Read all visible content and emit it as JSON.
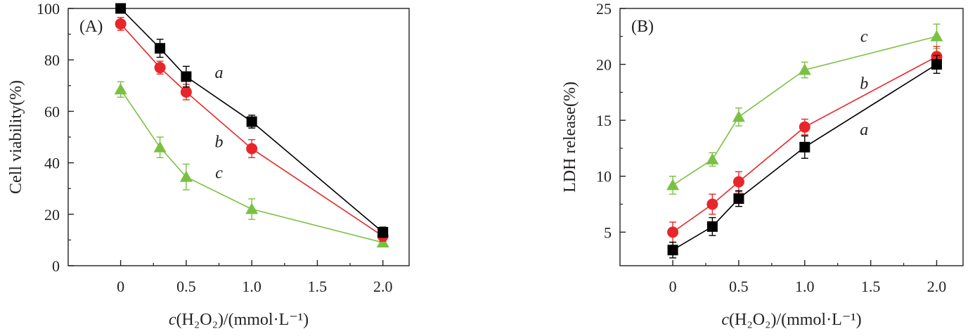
{
  "chart_data": [
    {
      "type": "line",
      "panel_label": "(A)",
      "xlabel": "c(H2O2)/(mmol·L⁻¹)",
      "ylabel": "Cell viability(%)",
      "x": [
        0,
        0.3,
        0.5,
        1.0,
        2.0
      ],
      "x_ticks": [
        "0",
        "0.5",
        "1.0",
        "1.5",
        "2.0"
      ],
      "y_ticks": [
        "0",
        "20",
        "40",
        "60",
        "80",
        "100"
      ],
      "xlim": [
        -0.4,
        2.2
      ],
      "ylim": [
        0,
        100
      ],
      "grid": false,
      "legend": "none",
      "series": [
        {
          "name": "a",
          "marker": "square",
          "color": "#000000",
          "values": [
            100,
            84.5,
            73.5,
            56,
            13
          ],
          "errors": [
            0,
            3.5,
            4,
            2.5,
            2
          ]
        },
        {
          "name": "b",
          "marker": "circle",
          "color": "#e8262a",
          "values": [
            94,
            77,
            67.5,
            45.5,
            11.5
          ],
          "errors": [
            2.5,
            2.5,
            3,
            3.5,
            2
          ]
        },
        {
          "name": "c",
          "marker": "triangle",
          "color": "#7ac143",
          "values": [
            68.5,
            46,
            34.5,
            22,
            9
          ],
          "errors": [
            3,
            4,
            5,
            4,
            1.5
          ]
        }
      ]
    },
    {
      "type": "line",
      "panel_label": "(B)",
      "xlabel": "c(H2O2)/(mmol·L⁻¹)",
      "ylabel": "LDH release(%)",
      "x": [
        0,
        0.3,
        0.5,
        1.0,
        2.0
      ],
      "x_ticks": [
        "0",
        "0.5",
        "1.0",
        "1.5",
        "2.0"
      ],
      "y_ticks": [
        "5",
        "10",
        "15",
        "20",
        "25"
      ],
      "xlim": [
        -0.4,
        2.2
      ],
      "ylim": [
        2,
        25
      ],
      "grid": false,
      "legend": "none",
      "series": [
        {
          "name": "a",
          "marker": "square",
          "color": "#000000",
          "values": [
            3.4,
            5.5,
            8,
            12.6,
            20
          ],
          "errors": [
            0.7,
            0.8,
            0.7,
            1,
            0.8
          ]
        },
        {
          "name": "b",
          "marker": "circle",
          "color": "#e8262a",
          "values": [
            5,
            7.5,
            9.5,
            14.4,
            20.7
          ],
          "errors": [
            0.9,
            0.9,
            0.9,
            0.7,
            0.9
          ]
        },
        {
          "name": "c",
          "marker": "triangle",
          "color": "#7ac143",
          "values": [
            9.2,
            11.5,
            15.3,
            19.5,
            22.5
          ],
          "errors": [
            0.8,
            0.6,
            0.8,
            0.7,
            1.1
          ]
        }
      ]
    }
  ]
}
